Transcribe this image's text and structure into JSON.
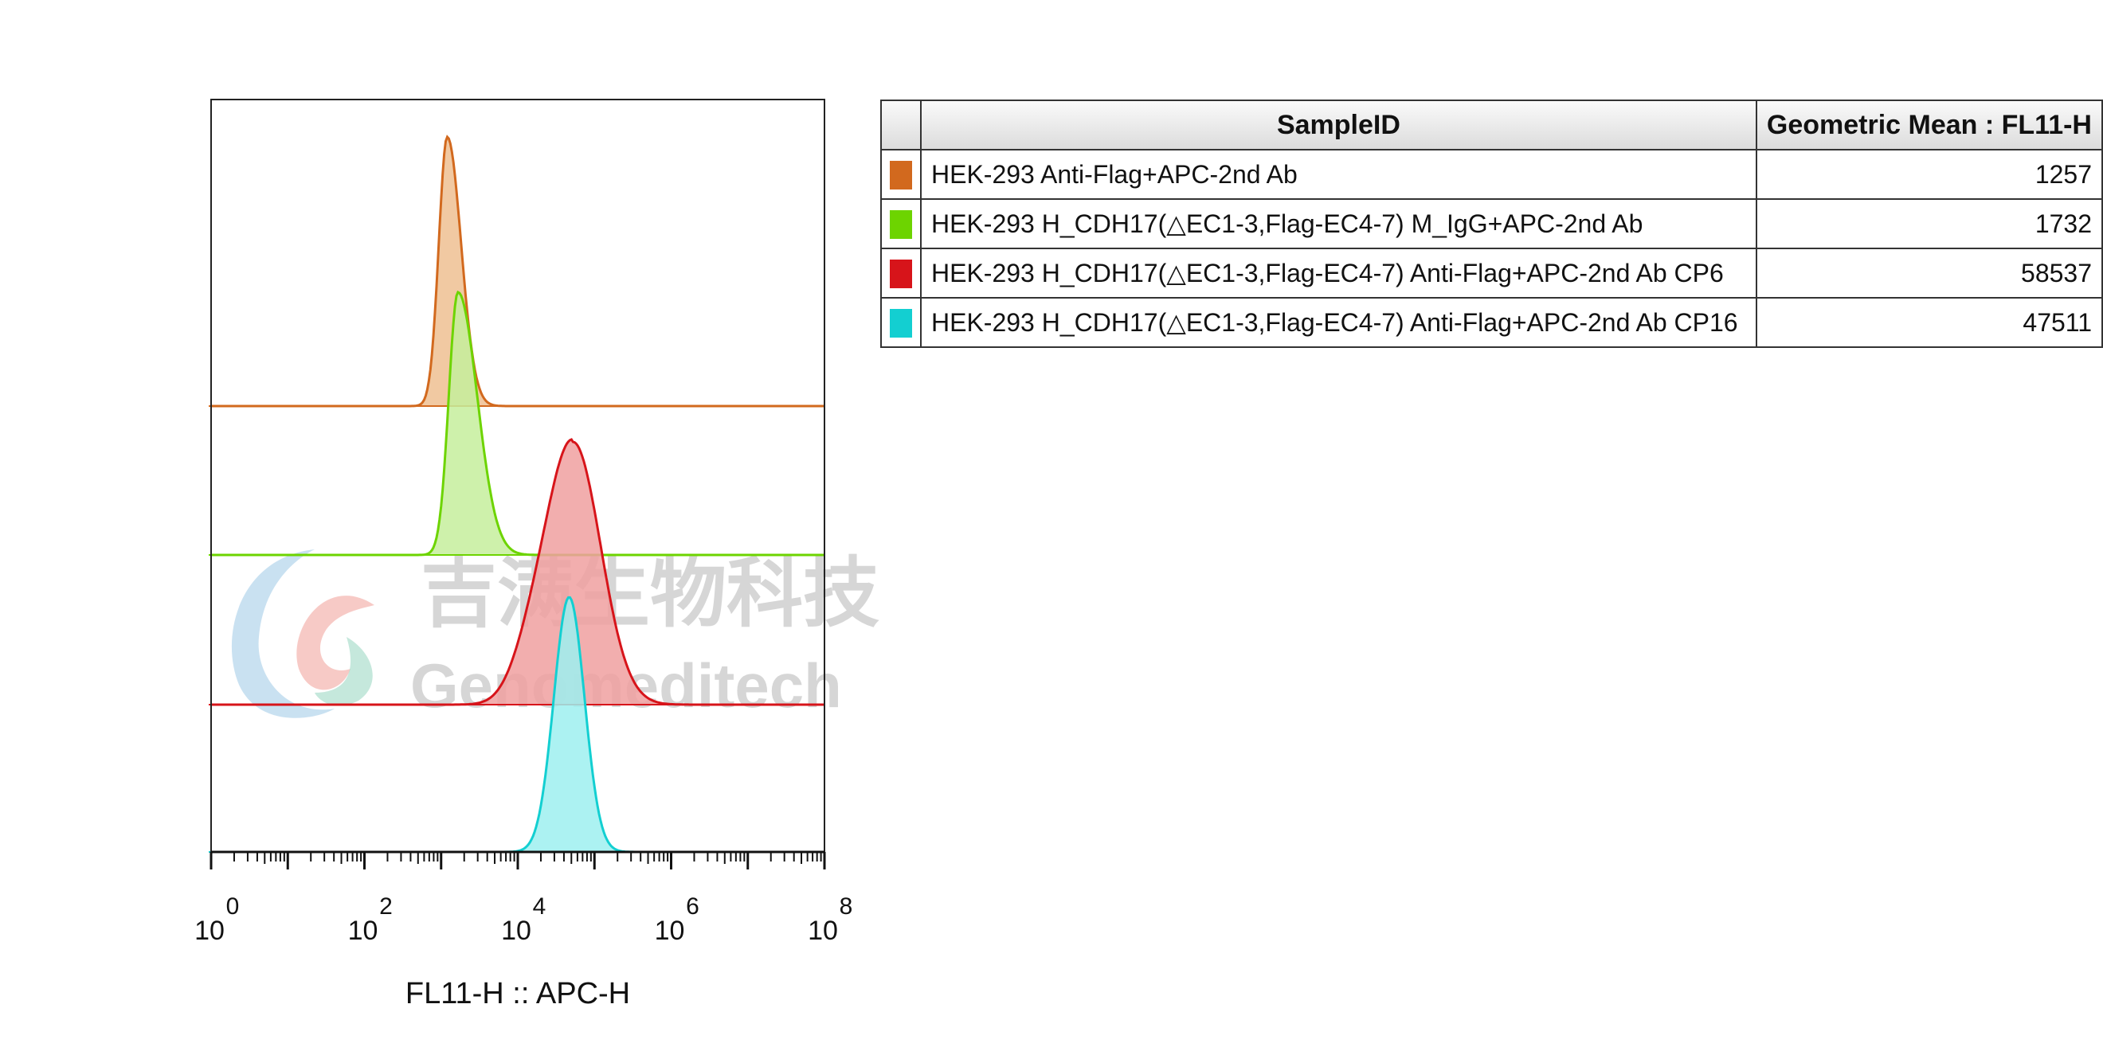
{
  "chart_data": {
    "type": "histogram-overlay",
    "xlabel": "FL11-H :: APC-H",
    "x_scale": "log",
    "xlim": [
      1,
      100000000
    ],
    "x_ticks": [
      {
        "base": "10",
        "exp": "0"
      },
      {
        "base": "10",
        "exp": "2"
      },
      {
        "base": "10",
        "exp": "4"
      },
      {
        "base": "10",
        "exp": "6"
      },
      {
        "base": "10",
        "exp": "8"
      }
    ],
    "series": [
      {
        "name": "HEK-293 Anti-Flag+APC-2nd Ab",
        "color": "#d2691e",
        "fill": "#efbf92",
        "peak_log10": 3.08,
        "sd": 0.11,
        "right_tail": 0.18,
        "geo_mean": "1257"
      },
      {
        "name": "HEK-293 H_CDH17(△EC1-3,Flag-EC4-7) M_IgG+APC-2nd Ab",
        "color": "#6dd400",
        "fill": "#c6ef9c",
        "peak_log10": 3.22,
        "sd": 0.12,
        "right_tail": 0.25,
        "geo_mean": "1732"
      },
      {
        "name": "HEK-293 H_CDH17(△EC1-3,Flag-EC4-7) Anti-Flag+APC-2nd Ab CP6",
        "color": "#d7141a",
        "fill": "#f0a0a0",
        "peak_log10": 4.72,
        "sd": 0.36,
        "right_tail": 0.36,
        "geo_mean": "58537"
      },
      {
        "name": "HEK-293 H_CDH17(△EC1-3,Flag-EC4-7) Anti-Flag+APC-2nd Ab CP16",
        "color": "#13cfd1",
        "fill": "#9ef0f0",
        "peak_log10": 4.67,
        "sd": 0.2,
        "right_tail": 0.2,
        "geo_mean": "47511"
      }
    ]
  },
  "legend": {
    "header_sample": "SampleID",
    "header_value": "Geometric Mean : FL11-H"
  },
  "watermark": {
    "chinese": "吉满生物科技",
    "english": "Genomeditech"
  }
}
